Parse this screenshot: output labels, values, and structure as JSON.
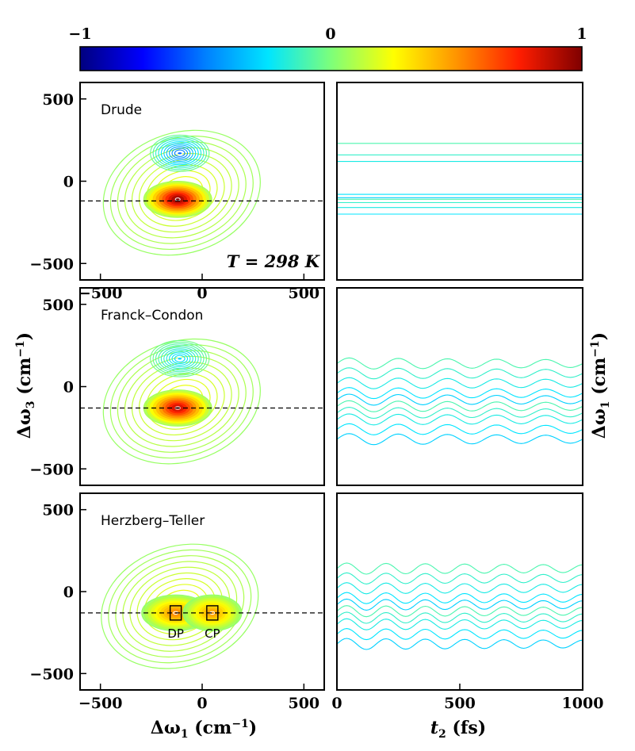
{
  "colorbar": {
    "ticks": [
      "−1",
      "0",
      "1"
    ],
    "stops": [
      "#00007f",
      "#0000ff",
      "#0080ff",
      "#00e5ff",
      "#7dff7a",
      "#ffff00",
      "#ff9400",
      "#ff1d00",
      "#7f0000"
    ]
  },
  "chart_data": [
    {
      "type": "heatmap",
      "title": "Drude",
      "annotation": "T = 298 K",
      "xlim": [
        -600,
        600
      ],
      "ylim": [
        -600,
        600
      ],
      "xticks": [
        "−500",
        "0",
        "500"
      ],
      "yticks": [
        "500",
        "0",
        "−500"
      ],
      "xlabel": "",
      "ylabel": "",
      "dashed_line_y": -120,
      "peaks": [
        {
          "x": -120,
          "y": -110,
          "value": 1.0,
          "label": ""
        },
        {
          "x": -110,
          "y": 170,
          "value": -0.55,
          "label": ""
        }
      ]
    },
    {
      "type": "heatmap",
      "title": "",
      "xlim": [
        0,
        1000
      ],
      "ylim": [
        -600,
        600
      ],
      "xticks": [],
      "yticks": [],
      "note": "contours decaying along t2 near Δω1 ≈ -120 and ≈ 230 cm^-1"
    },
    {
      "type": "heatmap",
      "title": "Franck–Condon",
      "xlim": [
        -600,
        600
      ],
      "ylim": [
        -600,
        600
      ],
      "xticks": [],
      "yticks": [
        "500",
        "0",
        "−500"
      ],
      "dashed_line_y": -130,
      "peaks": [
        {
          "x": -120,
          "y": -130,
          "value": 0.9,
          "label": ""
        },
        {
          "x": -110,
          "y": 170,
          "value": -0.3,
          "label": ""
        }
      ]
    },
    {
      "type": "heatmap",
      "title": "",
      "xlim": [
        0,
        1000
      ],
      "ylim": [
        -600,
        600
      ],
      "xticks": [],
      "yticks": [],
      "ylabel_right": "Δω",
      "ylabel_right_sub": "1",
      "ylabel_right_unit": " (cm",
      "ylabel_right_unit_sup": "−1",
      "ylabel_right_close": ")",
      "note": "oscillations along t2 with period ≈ 200 fs"
    },
    {
      "type": "heatmap",
      "title": "Herzberg–Teller",
      "xlim": [
        -600,
        600
      ],
      "ylim": [
        -600,
        600
      ],
      "xticks": [
        "−500",
        "0",
        "500"
      ],
      "yticks": [
        "500",
        "0",
        "−500"
      ],
      "xlabel": "Δω",
      "xlabel_sub": "1",
      "xlabel_unit": " (cm",
      "xlabel_unit_sup": "−1",
      "xlabel_close": ")",
      "dashed_line_y": -130,
      "peaks": [
        {
          "x": -130,
          "y": -130,
          "value": 0.55,
          "label": "DP"
        },
        {
          "x": 50,
          "y": -130,
          "value": 0.5,
          "label": "CP"
        }
      ]
    },
    {
      "type": "heatmap",
      "title": "",
      "xlim": [
        0,
        1000
      ],
      "ylim": [
        -600,
        600
      ],
      "xticks": [
        "0",
        "500",
        "1000"
      ],
      "yticks": [],
      "xlabel": "t",
      "xlabel_sub": "2",
      "xlabel_unit": " (fs)",
      "note": "oscillations along t2 with period ≈ 160 fs"
    }
  ],
  "shared_ylabel": {
    "text": "Δω",
    "sub": "3",
    "unit": " (cm",
    "sup": "−1",
    "close": ")"
  }
}
